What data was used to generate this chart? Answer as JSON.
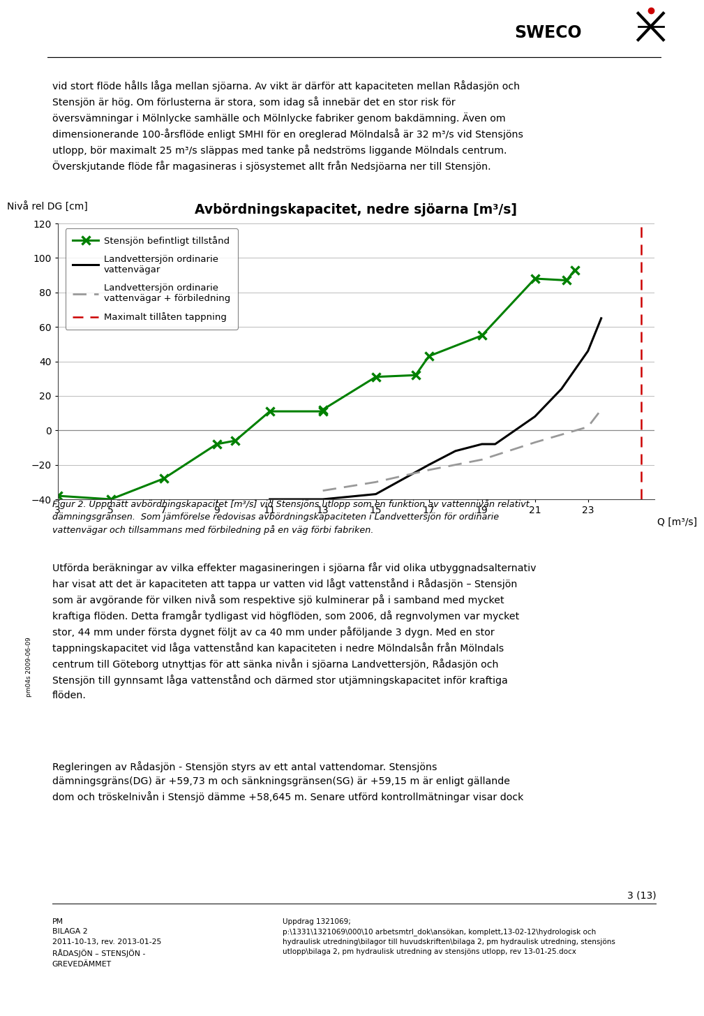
{
  "page_title": "Avbördningskapacitet, nedre sjöarna [m³/s]",
  "y_label": "Nivå rel DG [cm]",
  "x_label": "Q [m³/s]",
  "xlim": [
    3,
    25.5
  ],
  "ylim": [
    -40,
    120
  ],
  "xticks": [
    3,
    5,
    7,
    9,
    11,
    13,
    15,
    17,
    19,
    21,
    23
  ],
  "yticks": [
    -40,
    -20,
    0,
    20,
    40,
    60,
    80,
    100,
    120
  ],
  "green_line": {
    "x": [
      3,
      5,
      7,
      9,
      9.7,
      11,
      13,
      13,
      15,
      16.5,
      17,
      19,
      21,
      22.2,
      22.5
    ],
    "y": [
      -38,
      -40,
      -28,
      -8,
      -6,
      11,
      11,
      12,
      31,
      32,
      43,
      55,
      88,
      87,
      93
    ],
    "color": "#008000",
    "label": "Stensjön befintligt tillstånd"
  },
  "black_line": {
    "x": [
      11,
      13,
      15,
      17,
      18,
      19,
      19.5,
      21,
      22,
      23,
      23.5
    ],
    "y": [
      -40,
      -40,
      -37,
      -20,
      -12,
      -8,
      -8,
      8,
      24,
      46,
      65
    ],
    "color": "#000000",
    "label": "Landvettersjön ordinarie\nvattenvägar"
  },
  "gray_dashed_line": {
    "x": [
      13,
      15,
      17,
      19,
      21,
      23,
      23.5
    ],
    "y": [
      -35,
      -30,
      -23,
      -17,
      -7,
      2,
      12
    ],
    "color": "#999999",
    "label": "Landvettersjön ordinarie\nvattenvägar + förbiledning"
  },
  "red_dashed_x": 25,
  "red_dashed_label": "Maximalt tillåten tappning",
  "paragraph1_line1": "vid stort flöde hålls låga mellan sjöarna. Av vikt är därför att kapaciteten mellan Rådasjön och",
  "paragraph1_line2": "Stensjön är hög. Om förlusterna är stora, som idag så innebär det en stor risk för",
  "paragraph1_line3": "översvämningar i Mölnlycke samhälle och Mölnlycke fabriker genom bakdämning. Även om",
  "paragraph1_line4": "dimensionerande 100-årsflöde enligt SMHI för en oreglerad Mölndalså är 32 m³/s vid Stensjöns",
  "paragraph1_line5": "utlopp, bör maximalt 25 m³/s släppas med tanke på nedströms liggande Mölndals centrum.",
  "paragraph1_line6": "Överskjutande flöde får magasineras i sjösystemet allt från Nedsjöarna ner till Stensjön.",
  "caption_line1": "Figur 2. Uppmätt avbördningskapacitet [m³/s] vid Stensjöns utlopp som en funktion av vattennivån relativt",
  "caption_line2": "dämningsgränsen.  Som jämförelse redovisas avbördningskapaciteten i Landvettersjön för ordinarie",
  "caption_line3": "vattenvägar och tillsammans med förbiledning på en väg förbi fabriken.",
  "body1_lines": [
    "Utförda beräkningar av vilka effekter magasineringen i sjöarna får vid olika utbyggnadsalternativ",
    "har visat att det är kapaciteten att tappa ur vatten vid lågt vattenstånd i Rådasjön – Stensjön",
    "som är avgörande för vilken nivå som respektive sjö kulminerar på i samband med mycket",
    "kraftiga flöden. Detta framgår tydligast vid högflöden, som 2006, då regnvolymen var mycket",
    "stor, 44 mm under första dygnet följt av ca 40 mm under påföljande 3 dygn. Med en stor",
    "tappningskapacitet vid låga vattenstånd kan kapaciteten i nedre Mölndalsån från Mölndals",
    "centrum till Göteborg utnyttjas för att sänka nivån i sjöarna Landvettersjön, Rådasjön och",
    "Stensjön till gynnsamt låga vattenstånd och därmed stor utjämningskapacitet inför kraftiga",
    "flöden."
  ],
  "body2_lines": [
    "Regleringen av Rådasjön - Stensjön styrs av ett antal vattendomar. Stensjöns",
    "dämningsgräns(DG) är +59,73 m och sänkningsgränsen(SG) är +59,15 m är enligt gällande",
    "dom och tröskelnivån i Stensjö dämme +58,645 m. Senare utförd kontrollmätningar visar dock"
  ],
  "footer_page": "3 (13)",
  "footer_left": "PM\nBILAGA 2\n2011-10-13, rev. 2013-01-25\nRÅDASJÖN – STENSJÖN -\nGREVEDÄMMET",
  "footer_right": "Uppdrag 1321069;\np:\\1331\\1321069\\000\\10 arbetsmtrl_dok\\ansökan, komplett,13-02-12\\hydrologisk och\nhydraulisk utredning\\bilagor till huvudskriften\\bilaga 2, pm hydraulisk utredning, stensjöns\nutlopp\\bilaga 2, pm hydraulisk utredning av stensjöns utlopp, rev 13-01-25.docx",
  "sidebar_text": "pm04s 2009-06-09"
}
